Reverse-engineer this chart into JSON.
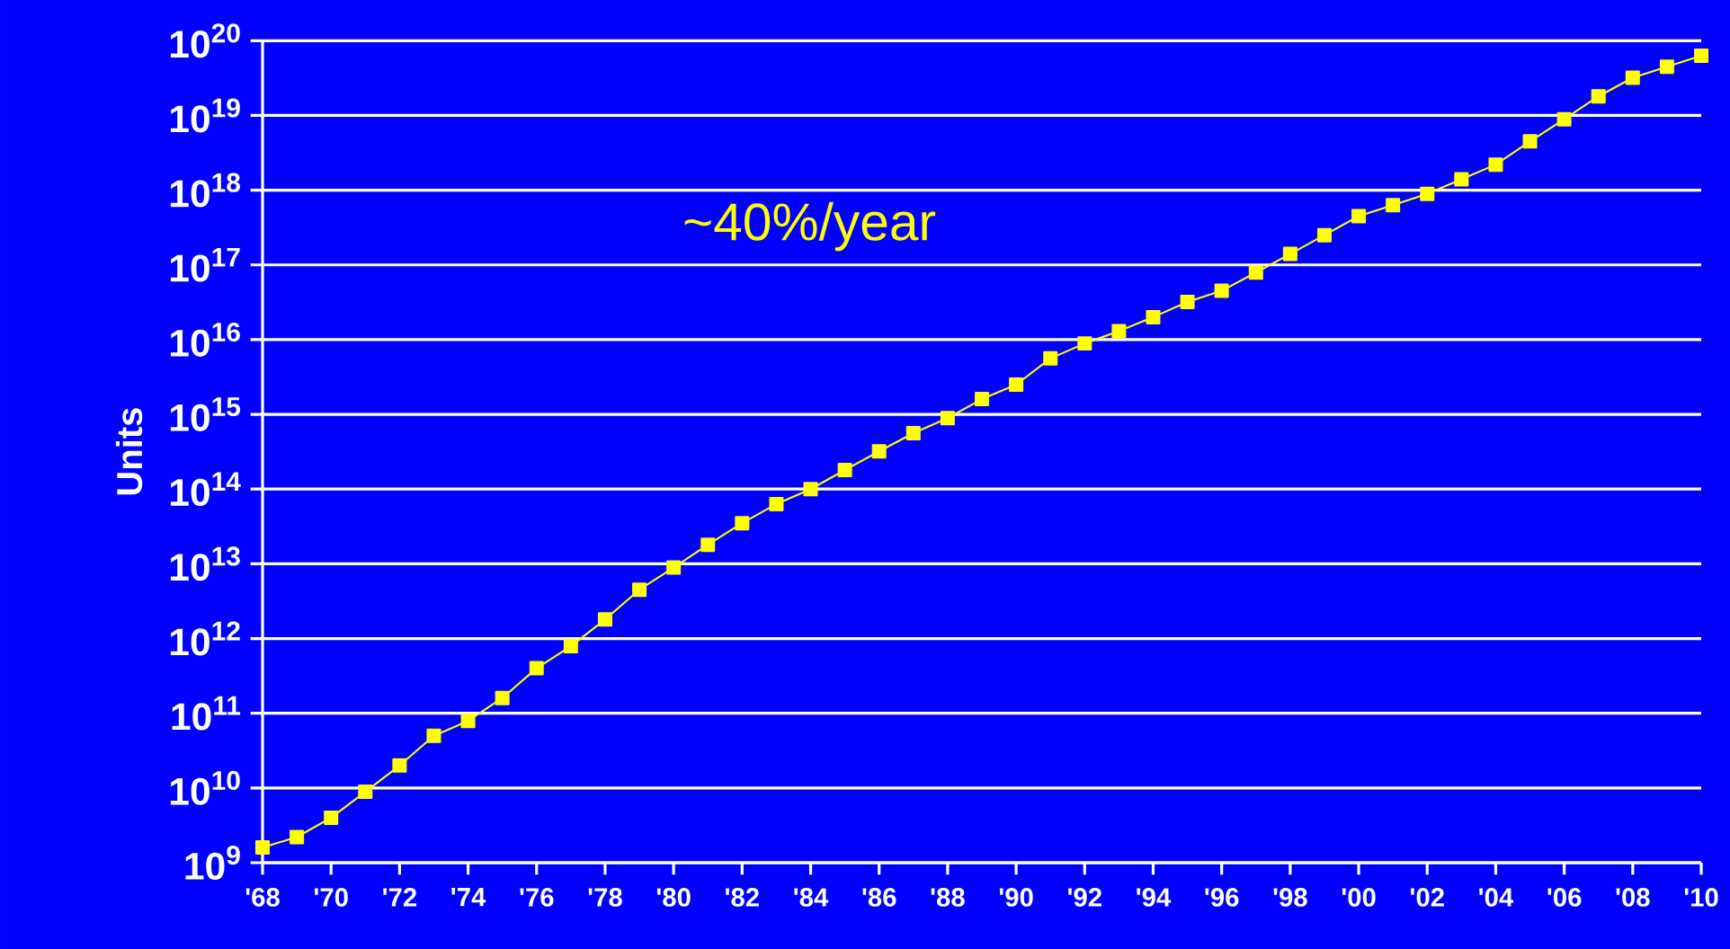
{
  "chart_data": {
    "type": "line",
    "ylabel": "Units",
    "annotations": [
      "~40%/year"
    ],
    "x": [
      1968,
      1969,
      1970,
      1971,
      1972,
      1973,
      1974,
      1975,
      1976,
      1977,
      1978,
      1979,
      1980,
      1981,
      1982,
      1983,
      1984,
      1985,
      1986,
      1987,
      1988,
      1989,
      1990,
      1991,
      1992,
      1993,
      1994,
      1995,
      1996,
      1997,
      1998,
      1999,
      2000,
      2001,
      2002,
      2003,
      2004,
      2005,
      2006,
      2007,
      2008,
      2009,
      2010
    ],
    "values": [
      1600000000.0,
      2200000000.0,
      4000000000.0,
      8900000000.0,
      20000000000.0,
      50000000000.0,
      79000000000.0,
      160000000000.0,
      400000000000.0,
      790000000000.0,
      1800000000000.0,
      4500000000000.0,
      8900000000000.0,
      18000000000000.0,
      35000000000000.0,
      63000000000000.0,
      100000000000000.0,
      180000000000000.0,
      320000000000000.0,
      560000000000000.0,
      890000000000000.0,
      1600000000000000.0,
      2500000000000000.0,
      5600000000000000.0,
      8900000000000000.0,
      1.3e+16,
      2e+16,
      3.2e+16,
      4.5e+16,
      7.9e+16,
      1.4e+17,
      2.5e+17,
      4.5e+17,
      6.3e+17,
      8.9e+17,
      1.4e+18,
      2.2e+18,
      4.5e+18,
      8.9e+18,
      1.8e+19,
      3.2e+19,
      4.5e+19,
      6.3e+19
    ],
    "color": "#ffff00",
    "marker": "square",
    "line_style": "solid",
    "log": "y",
    "grid": "y",
    "xlim": [
      1968,
      2010
    ],
    "xticks": [
      {
        "value": 1968,
        "label": "'68"
      },
      {
        "value": 1970,
        "label": "'70"
      },
      {
        "value": 1972,
        "label": "'72"
      },
      {
        "value": 1974,
        "label": "'74"
      },
      {
        "value": 1976,
        "label": "'76"
      },
      {
        "value": 1978,
        "label": "'78"
      },
      {
        "value": 1980,
        "label": "'80"
      },
      {
        "value": 1982,
        "label": "'82"
      },
      {
        "value": 1984,
        "label": "'84"
      },
      {
        "value": 1986,
        "label": "'86"
      },
      {
        "value": 1988,
        "label": "'88"
      },
      {
        "value": 1990,
        "label": "'90"
      },
      {
        "value": 1992,
        "label": "'92"
      },
      {
        "value": 1994,
        "label": "'94"
      },
      {
        "value": 1996,
        "label": "'96"
      },
      {
        "value": 1998,
        "label": "'98"
      },
      {
        "value": 2000,
        "label": "'00"
      },
      {
        "value": 2002,
        "label": "'02"
      },
      {
        "value": 2004,
        "label": "'04"
      },
      {
        "value": 2006,
        "label": "'06"
      },
      {
        "value": 2008,
        "label": "'08"
      },
      {
        "value": 2010,
        "label": "'10"
      }
    ],
    "ylim": [
      1000000000.0,
      1e+20
    ],
    "yticks": [
      {
        "value": 1000000000.0,
        "label": "10$^{9}$"
      },
      {
        "value": 10000000000.0,
        "label": "10$^{10}$"
      },
      {
        "value": 100000000000.0,
        "label": "10$^{11}$"
      },
      {
        "value": 1000000000000.0,
        "label": "10$^{12}$"
      },
      {
        "value": 10000000000000.0,
        "label": "10$^{13}$"
      },
      {
        "value": 100000000000000.0,
        "label": "10$^{14}$"
      },
      {
        "value": 1000000000000000.0,
        "label": "10$^{15}$"
      },
      {
        "value": 1e+16,
        "label": "10$^{16}$"
      },
      {
        "value": 1e+17,
        "label": "10$^{17}$"
      },
      {
        "value": 1e+18,
        "label": "10$^{18}$"
      },
      {
        "value": 1e+19,
        "label": "10$^{19}$"
      },
      {
        "value": 1e+20,
        "label": "10$^{20}$"
      }
    ]
  }
}
